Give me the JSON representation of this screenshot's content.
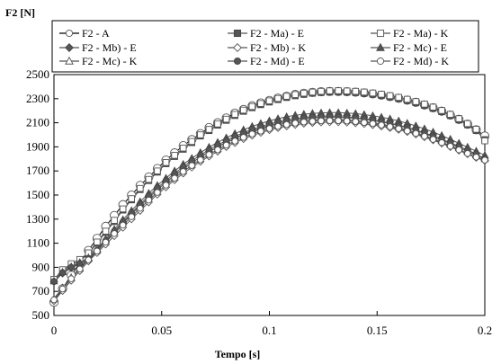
{
  "chart_data": {
    "type": "line",
    "ylabel": "F2 [N]",
    "xlabel": "Tempo [s]",
    "xlim": [
      0,
      0.2
    ],
    "ylim": [
      500,
      2500
    ],
    "xticks": [
      "0",
      "0.05",
      "0.1",
      "0.15",
      "0.2"
    ],
    "yticks": [
      "500",
      "700",
      "900",
      "1100",
      "1300",
      "1500",
      "1700",
      "1900",
      "2100",
      "2300",
      "2500"
    ],
    "legend": {
      "placement": "top",
      "columns": 3
    },
    "grid": false,
    "x_step": 0.004,
    "series": [
      {
        "name": "F2 - A",
        "marker": "circle-open",
        "line_color": "#000000",
        "x": [
          0,
          0.004,
          0.008,
          0.012,
          0.016,
          0.02,
          0.024,
          0.028,
          0.032,
          0.036,
          0.04,
          0.044,
          0.048,
          0.052,
          0.056,
          0.06,
          0.064,
          0.068,
          0.072,
          0.076,
          0.08,
          0.084,
          0.088,
          0.092,
          0.096,
          0.1,
          0.104,
          0.108,
          0.112,
          0.116,
          0.12,
          0.124,
          0.128,
          0.132,
          0.136,
          0.14,
          0.144,
          0.148,
          0.152,
          0.156,
          0.16,
          0.164,
          0.168,
          0.172,
          0.176,
          0.18,
          0.184,
          0.188,
          0.192,
          0.196,
          0.2
        ],
        "values": [
          610,
          722,
          834,
          936,
          1040,
          1140,
          1240,
          1330,
          1420,
          1500,
          1580,
          1650,
          1720,
          1790,
          1850,
          1910,
          1960,
          2010,
          2060,
          2100,
          2140,
          2180,
          2210,
          2240,
          2265,
          2285,
          2305,
          2320,
          2335,
          2345,
          2352,
          2358,
          2360,
          2360,
          2358,
          2354,
          2348,
          2340,
          2330,
          2318,
          2304,
          2288,
          2270,
          2248,
          2224,
          2196,
          2164,
          2128,
          2088,
          2042,
          1990
        ]
      },
      {
        "name": "F2 - Ma) - E",
        "marker": "square-filled",
        "line_color": "#555555",
        "x": [
          0,
          0.004,
          0.008,
          0.012,
          0.016,
          0.02,
          0.024,
          0.028,
          0.032,
          0.036,
          0.04,
          0.044,
          0.048,
          0.052,
          0.056,
          0.06,
          0.064,
          0.068,
          0.072,
          0.076,
          0.08,
          0.084,
          0.088,
          0.092,
          0.096,
          0.1,
          0.104,
          0.108,
          0.112,
          0.116,
          0.12,
          0.124,
          0.128,
          0.132,
          0.136,
          0.14,
          0.144,
          0.148,
          0.152,
          0.156,
          0.16,
          0.164,
          0.168,
          0.172,
          0.176,
          0.18,
          0.184,
          0.188,
          0.192,
          0.196,
          0.2
        ],
        "values": [
          790,
          870,
          920,
          955,
          1010,
          1100,
          1190,
          1280,
          1375,
          1460,
          1545,
          1620,
          1690,
          1760,
          1820,
          1880,
          1935,
          1990,
          2035,
          2080,
          2120,
          2160,
          2195,
          2225,
          2250,
          2272,
          2292,
          2310,
          2324,
          2336,
          2345,
          2351,
          2355,
          2356,
          2354,
          2351,
          2345,
          2337,
          2327,
          2315,
          2301,
          2285,
          2266,
          2245,
          2220,
          2192,
          2160,
          2124,
          2083,
          2036,
          1960
        ]
      },
      {
        "name": "F2 - Ma) - K",
        "marker": "square-open",
        "line_color": "#555555",
        "x": [
          0,
          0.004,
          0.008,
          0.012,
          0.016,
          0.02,
          0.024,
          0.028,
          0.032,
          0.036,
          0.04,
          0.044,
          0.048,
          0.052,
          0.056,
          0.06,
          0.064,
          0.068,
          0.072,
          0.076,
          0.08,
          0.084,
          0.088,
          0.092,
          0.096,
          0.1,
          0.104,
          0.108,
          0.112,
          0.116,
          0.12,
          0.124,
          0.128,
          0.132,
          0.136,
          0.14,
          0.144,
          0.148,
          0.152,
          0.156,
          0.16,
          0.164,
          0.168,
          0.172,
          0.176,
          0.18,
          0.184,
          0.188,
          0.192,
          0.196,
          0.2
        ],
        "values": [
          800,
          880,
          930,
          965,
          1020,
          1110,
          1200,
          1290,
          1385,
          1470,
          1555,
          1630,
          1700,
          1770,
          1830,
          1890,
          1945,
          2000,
          2045,
          2090,
          2130,
          2170,
          2205,
          2235,
          2260,
          2282,
          2302,
          2320,
          2334,
          2346,
          2355,
          2361,
          2365,
          2366,
          2364,
          2361,
          2355,
          2347,
          2337,
          2325,
          2311,
          2295,
          2276,
          2255,
          2230,
          2202,
          2170,
          2134,
          2093,
          2046,
          1950
        ]
      },
      {
        "name": "F2 - Mb) - E",
        "marker": "diamond-filled",
        "line_color": "#555555",
        "x": [
          0,
          0.004,
          0.008,
          0.012,
          0.016,
          0.02,
          0.024,
          0.028,
          0.032,
          0.036,
          0.04,
          0.044,
          0.048,
          0.052,
          0.056,
          0.06,
          0.064,
          0.068,
          0.072,
          0.076,
          0.08,
          0.084,
          0.088,
          0.092,
          0.096,
          0.1,
          0.104,
          0.108,
          0.112,
          0.116,
          0.12,
          0.124,
          0.128,
          0.132,
          0.136,
          0.14,
          0.144,
          0.148,
          0.152,
          0.156,
          0.16,
          0.164,
          0.168,
          0.172,
          0.176,
          0.18,
          0.184,
          0.188,
          0.192,
          0.196,
          0.2
        ],
        "values": [
          780,
          850,
          895,
          925,
          960,
          1030,
          1110,
          1190,
          1265,
          1340,
          1410,
          1480,
          1545,
          1605,
          1665,
          1720,
          1770,
          1815,
          1860,
          1900,
          1935,
          1970,
          2000,
          2025,
          2048,
          2068,
          2085,
          2098,
          2110,
          2118,
          2124,
          2127,
          2128,
          2127,
          2124,
          2118,
          2110,
          2100,
          2088,
          2074,
          2058,
          2040,
          2018,
          1994,
          1968,
          1940,
          1910,
          1878,
          1845,
          1815,
          1790
        ]
      },
      {
        "name": "F2 - Mb) - K",
        "marker": "diamond-open",
        "line_color": "#555555",
        "x": [
          0,
          0.004,
          0.008,
          0.012,
          0.016,
          0.02,
          0.024,
          0.028,
          0.032,
          0.036,
          0.04,
          0.044,
          0.048,
          0.052,
          0.056,
          0.06,
          0.064,
          0.068,
          0.072,
          0.076,
          0.08,
          0.084,
          0.088,
          0.092,
          0.096,
          0.1,
          0.104,
          0.108,
          0.112,
          0.116,
          0.12,
          0.124,
          0.128,
          0.132,
          0.136,
          0.14,
          0.144,
          0.148,
          0.152,
          0.156,
          0.16,
          0.164,
          0.168,
          0.172,
          0.176,
          0.18,
          0.184,
          0.188,
          0.192,
          0.196,
          0.2
        ],
        "values": [
          620,
          705,
          790,
          870,
          950,
          1020,
          1090,
          1160,
          1230,
          1300,
          1370,
          1440,
          1505,
          1565,
          1625,
          1680,
          1730,
          1778,
          1822,
          1862,
          1900,
          1934,
          1966,
          1994,
          2018,
          2040,
          2058,
          2072,
          2084,
          2094,
          2100,
          2104,
          2106,
          2106,
          2103,
          2098,
          2091,
          2082,
          2071,
          2058,
          2043,
          2025,
          2004,
          1981,
          1956,
          1929,
          1900,
          1870,
          1840,
          1810,
          1785
        ]
      },
      {
        "name": "F2 - Mc) - E",
        "marker": "triangle-filled",
        "line_color": "#555555",
        "x": [
          0,
          0.004,
          0.008,
          0.012,
          0.016,
          0.02,
          0.024,
          0.028,
          0.032,
          0.036,
          0.04,
          0.044,
          0.048,
          0.052,
          0.056,
          0.06,
          0.064,
          0.068,
          0.072,
          0.076,
          0.08,
          0.084,
          0.088,
          0.092,
          0.096,
          0.1,
          0.104,
          0.108,
          0.112,
          0.116,
          0.12,
          0.124,
          0.128,
          0.132,
          0.136,
          0.14,
          0.144,
          0.148,
          0.152,
          0.156,
          0.16,
          0.164,
          0.168,
          0.172,
          0.176,
          0.18,
          0.184,
          0.188,
          0.192,
          0.196,
          0.2
        ],
        "values": [
          785,
          860,
          905,
          940,
          980,
          1055,
          1135,
          1215,
          1295,
          1370,
          1445,
          1515,
          1580,
          1640,
          1700,
          1755,
          1805,
          1852,
          1897,
          1937,
          1975,
          2010,
          2042,
          2070,
          2094,
          2116,
          2134,
          2150,
          2162,
          2171,
          2178,
          2182,
          2184,
          2184,
          2181,
          2176,
          2168,
          2158,
          2146,
          2132,
          2115,
          2096,
          2074,
          2050,
          2023,
          1994,
          1963,
          1930,
          1897,
          1864,
          1830
        ]
      },
      {
        "name": "F2 - Mc) - K",
        "marker": "triangle-open",
        "line_color": "#555555",
        "x": [
          0,
          0.004,
          0.008,
          0.012,
          0.016,
          0.02,
          0.024,
          0.028,
          0.032,
          0.036,
          0.04,
          0.044,
          0.048,
          0.052,
          0.056,
          0.06,
          0.064,
          0.068,
          0.072,
          0.076,
          0.08,
          0.084,
          0.088,
          0.092,
          0.096,
          0.1,
          0.104,
          0.108,
          0.112,
          0.116,
          0.12,
          0.124,
          0.128,
          0.132,
          0.136,
          0.14,
          0.144,
          0.148,
          0.152,
          0.156,
          0.16,
          0.164,
          0.168,
          0.172,
          0.176,
          0.18,
          0.184,
          0.188,
          0.192,
          0.196,
          0.2
        ],
        "values": [
          640,
          730,
          815,
          895,
          975,
          1050,
          1125,
          1200,
          1272,
          1342,
          1412,
          1480,
          1545,
          1605,
          1663,
          1718,
          1768,
          1816,
          1860,
          1900,
          1938,
          1972,
          2004,
          2032,
          2056,
          2078,
          2096,
          2111,
          2123,
          2132,
          2139,
          2143,
          2145,
          2145,
          2142,
          2137,
          2129,
          2119,
          2107,
          2093,
          2076,
          2057,
          2035,
          2011,
          1985,
          1957,
          1927,
          1896,
          1864,
          1832,
          1800
        ]
      },
      {
        "name": "F2 - Md) - E",
        "marker": "circle-filled",
        "line_color": "#555555",
        "x": [
          0,
          0.004,
          0.008,
          0.012,
          0.016,
          0.02,
          0.024,
          0.028,
          0.032,
          0.036,
          0.04,
          0.044,
          0.048,
          0.052,
          0.056,
          0.06,
          0.064,
          0.068,
          0.072,
          0.076,
          0.08,
          0.084,
          0.088,
          0.092,
          0.096,
          0.1,
          0.104,
          0.108,
          0.112,
          0.116,
          0.12,
          0.124,
          0.128,
          0.132,
          0.136,
          0.14,
          0.144,
          0.148,
          0.152,
          0.156,
          0.16,
          0.164,
          0.168,
          0.172,
          0.176,
          0.18,
          0.184,
          0.188,
          0.192,
          0.196,
          0.2
        ],
        "values": [
          782,
          855,
          900,
          932,
          968,
          1040,
          1120,
          1200,
          1278,
          1353,
          1425,
          1495,
          1560,
          1620,
          1680,
          1735,
          1785,
          1831,
          1876,
          1916,
          1953,
          1987,
          2018,
          2045,
          2069,
          2090,
          2107,
          2121,
          2133,
          2141,
          2147,
          2151,
          2152,
          2151,
          2148,
          2142,
          2134,
          2124,
          2112,
          2097,
          2081,
          2062,
          2041,
          2017,
          1992,
          1964,
          1935,
          1904,
          1873,
          1842,
          1800
        ]
      },
      {
        "name": "F2 - Md) - K",
        "marker": "circle-open",
        "line_color": "#555555",
        "x": [
          0,
          0.004,
          0.008,
          0.012,
          0.016,
          0.02,
          0.024,
          0.028,
          0.032,
          0.036,
          0.04,
          0.044,
          0.048,
          0.052,
          0.056,
          0.06,
          0.064,
          0.068,
          0.072,
          0.076,
          0.08,
          0.084,
          0.088,
          0.092,
          0.096,
          0.1,
          0.104,
          0.108,
          0.112,
          0.116,
          0.12,
          0.124,
          0.128,
          0.132,
          0.136,
          0.14,
          0.144,
          0.148,
          0.152,
          0.156,
          0.16,
          0.164,
          0.168,
          0.172,
          0.176,
          0.18,
          0.184,
          0.188,
          0.192,
          0.196,
          0.2
        ],
        "values": [
          630,
          720,
          805,
          885,
          962,
          1035,
          1108,
          1180,
          1250,
          1320,
          1390,
          1458,
          1522,
          1582,
          1640,
          1695,
          1745,
          1792,
          1836,
          1876,
          1914,
          1948,
          1979,
          2007,
          2031,
          2052,
          2070,
          2085,
          2097,
          2106,
          2112,
          2116,
          2118,
          2118,
          2115,
          2110,
          2102,
          2093,
          2081,
          2067,
          2051,
          2032,
          2011,
          1988,
          1962,
          1935,
          1905,
          1875,
          1845,
          1815,
          1790
        ]
      }
    ]
  }
}
